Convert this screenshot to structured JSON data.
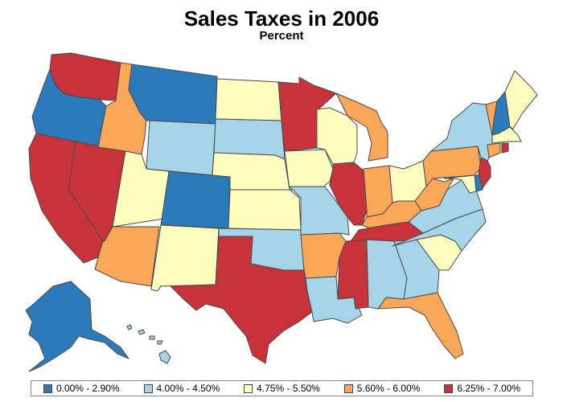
{
  "title": "Sales Taxes in 2006",
  "subtitle": "Percent",
  "legend": [
    {
      "label": "0.00% - 2.90%",
      "color": "#2b7bba"
    },
    {
      "label": "4.00% - 4.50%",
      "color": "#a6d4e8"
    },
    {
      "label": "4.75% - 5.50%",
      "color": "#fdfdc0"
    },
    {
      "label": "5.60% - 6.00%",
      "color": "#fba75a"
    },
    {
      "label": "6.25% - 7.00%",
      "color": "#c8333b"
    }
  ],
  "states": {
    "WA": 4,
    "OR": 0,
    "CA": 4,
    "NV": 4,
    "ID": 3,
    "MT": 0,
    "WY": 1,
    "UT": 2,
    "AZ": 3,
    "CO": 0,
    "NM": 2,
    "ND": 2,
    "SD": 1,
    "NE": 2,
    "KS": 2,
    "OK": 1,
    "TX": 4,
    "MN": 4,
    "IA": 2,
    "MO": 1,
    "AR": 3,
    "LA": 1,
    "WI": 2,
    "IL": 4,
    "MS": 4,
    "MI": 3,
    "IN": 3,
    "OH": 2,
    "KY": 3,
    "TN": 4,
    "AL": 1,
    "GA": 1,
    "FL": 3,
    "SC": 2,
    "NC": 1,
    "VA": 1,
    "WV": 3,
    "PA": 3,
    "NY": 1,
    "VT": 3,
    "NH": 0,
    "ME": 2,
    "MA": 2,
    "CT": 3,
    "RI": 4,
    "NJ": 4,
    "DE": 0,
    "MD": 2,
    "AK": 0,
    "HI": 1
  }
}
